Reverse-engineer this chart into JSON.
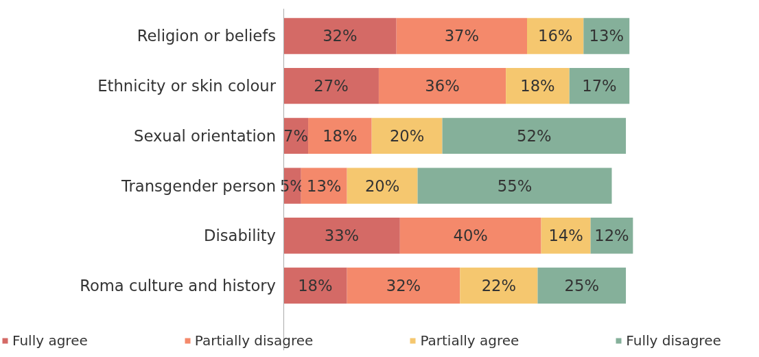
{
  "chart_data": {
    "type": "bar",
    "orientation": "horizontal",
    "stacked": true,
    "categories": [
      "Religion or beliefs",
      "Ethnicity or skin colour",
      "Sexual orientation",
      "Transgender person",
      "Disability",
      "Roma culture and history"
    ],
    "series": [
      {
        "name": "Fully agree",
        "color": "#d46a66",
        "values": [
          32,
          27,
          7,
          5,
          33,
          18
        ],
        "value_labels": [
          "32%",
          "27%",
          "7%",
          "5%",
          "33%",
          "18%"
        ]
      },
      {
        "name": "Partially disagree",
        "color": "#f4896b",
        "values": [
          37,
          36,
          18,
          13,
          40,
          32
        ],
        "value_labels": [
          "37%",
          "36%",
          "18%",
          "13%",
          "40%",
          "32%"
        ]
      },
      {
        "name": "Partially agree",
        "color": "#f5c76f",
        "values": [
          16,
          18,
          20,
          20,
          14,
          22
        ],
        "value_labels": [
          "16%",
          "18%",
          "20%",
          "20%",
          "14%",
          "22%"
        ]
      },
      {
        "name": "Fully disagree",
        "color": "#85b09a",
        "values": [
          13,
          17,
          52,
          55,
          12,
          25
        ],
        "value_labels": [
          "13%",
          "17%",
          "52%",
          "55%",
          "12%",
          "25%"
        ]
      }
    ],
    "legend": "bottom",
    "grid": false
  }
}
